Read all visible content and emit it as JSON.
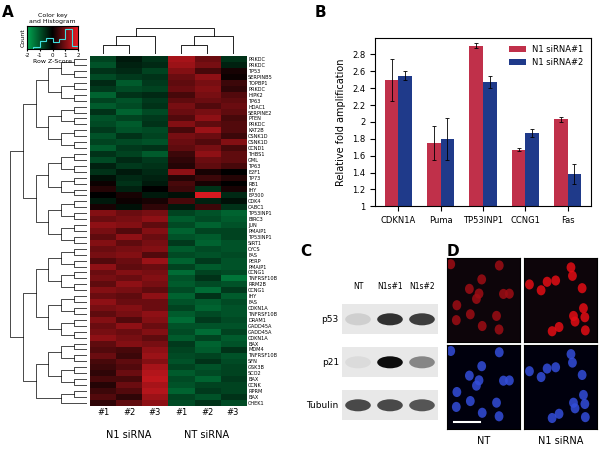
{
  "chart_data": [
    {
      "type": "heatmap",
      "panel": "A",
      "columns": [
        "#1",
        "#2",
        "#3",
        "#1",
        "#2",
        "#3"
      ],
      "groups": [
        {
          "name": "N1 siRNA",
          "columns": [
            0,
            1,
            2
          ]
        },
        {
          "name": "NT siRNA",
          "columns": [
            3,
            4,
            5
          ]
        }
      ],
      "rows": [
        "PRKDC",
        "PRKDC",
        "TP53",
        "SERPINB5",
        "TOPBP1",
        "PRKDC",
        "HIPK2",
        "TP63",
        "HDAC1",
        "SERPINE2",
        "PTEN",
        "PRKDC",
        "KAT2B",
        "CSNK1D",
        "CSNK1D",
        "CCND1",
        "THBS1",
        "GML",
        "TP63",
        "E2F1",
        "TP73",
        "RB1",
        "IHY",
        "EP300",
        "CDK4",
        "CABC1",
        "TP53INP1",
        "BIRC3",
        "JUN",
        "PMAIP1",
        "TP53INP1",
        "SIRT1",
        "CYCS",
        "FAS",
        "PERP",
        "PMAIP1",
        "CCNG1",
        "TNFRSF10B",
        "RRM2B",
        "CCNG1",
        "IHY",
        "FAS",
        "CDKN1A",
        "TNFRSF10B",
        "DRAM1",
        "GADD45A",
        "GADD45A",
        "CDKN1A",
        "BAX",
        "MDM4",
        "TNFRSF10B",
        "SFN",
        "GSK3B",
        "SCO2",
        "BAX",
        "CCNK",
        "RPRM",
        "BAX",
        "CHEK1"
      ],
      "cells": [
        [
          -0.8,
          -0.3,
          -0.6,
          1.4,
          0.9,
          -0.6
        ],
        [
          -1.0,
          -0.4,
          -0.5,
          1.3,
          1.0,
          -0.4
        ],
        [
          -0.6,
          -0.5,
          -0.8,
          1.1,
          0.6,
          0.2
        ],
        [
          -0.9,
          -0.7,
          -0.6,
          0.9,
          1.2,
          0.1
        ],
        [
          -0.5,
          -1.1,
          -0.7,
          0.8,
          1.0,
          0.5
        ],
        [
          -0.7,
          -0.9,
          -0.8,
          0.9,
          1.1,
          0.4
        ],
        [
          -1.2,
          -0.6,
          -0.5,
          0.6,
          1.0,
          0.7
        ],
        [
          -0.8,
          -1.0,
          -0.7,
          0.8,
          0.9,
          0.8
        ],
        [
          -1.1,
          -0.9,
          -0.6,
          1.0,
          0.7,
          0.9
        ],
        [
          -0.6,
          -1.2,
          -0.9,
          0.9,
          1.0,
          0.8
        ],
        [
          -1.0,
          -0.8,
          -0.7,
          0.7,
          1.2,
          0.6
        ],
        [
          -0.9,
          -1.1,
          -0.6,
          1.1,
          0.8,
          0.7
        ],
        [
          -0.7,
          -1.0,
          -0.9,
          0.6,
          1.3,
          0.7
        ],
        [
          -1.0,
          -0.6,
          -0.8,
          1.0,
          0.9,
          0.5
        ],
        [
          -0.8,
          -0.9,
          -1.0,
          0.9,
          0.7,
          1.1
        ],
        [
          -1.1,
          -0.7,
          -0.6,
          0.8,
          1.0,
          0.6
        ],
        [
          -0.6,
          -0.8,
          -1.1,
          0.5,
          1.2,
          0.8
        ],
        [
          -0.9,
          -0.5,
          -0.7,
          0.4,
          0.9,
          0.8
        ],
        [
          -0.4,
          -0.7,
          -0.6,
          0.3,
          0.8,
          0.6
        ],
        [
          -0.6,
          -0.3,
          -0.5,
          1.2,
          0.2,
          0.0
        ],
        [
          -0.2,
          -0.5,
          -0.4,
          0.3,
          0.5,
          0.3
        ],
        [
          0.1,
          -0.6,
          -0.3,
          0.6,
          0.2,
          0.0
        ],
        [
          0.3,
          -0.4,
          0.0,
          0.5,
          -0.6,
          0.2
        ],
        [
          0.0,
          0.2,
          -0.3,
          -0.2,
          1.8,
          -0.5
        ],
        [
          -0.3,
          0.1,
          0.2,
          0.6,
          -0.4,
          -0.2
        ],
        [
          0.2,
          -0.2,
          0.4,
          -0.3,
          0.5,
          -0.6
        ],
        [
          1.1,
          0.9,
          1.0,
          -0.8,
          -1.0,
          -1.2
        ],
        [
          0.9,
          1.0,
          1.2,
          -1.1,
          -0.9,
          -1.1
        ],
        [
          1.2,
          1.1,
          0.8,
          -0.9,
          -1.2,
          -1.0
        ],
        [
          1.0,
          0.7,
          1.1,
          -1.2,
          -0.8,
          -0.8
        ],
        [
          0.8,
          1.2,
          0.9,
          -1.0,
          -1.1,
          -0.8
        ],
        [
          1.1,
          0.8,
          1.0,
          -0.7,
          -1.2,
          -1.0
        ],
        [
          0.9,
          1.0,
          1.1,
          -1.1,
          -0.9,
          -1.0
        ],
        [
          1.0,
          1.1,
          0.7,
          -0.9,
          -1.0,
          -0.9
        ],
        [
          0.7,
          0.9,
          1.3,
          -1.2,
          -0.7,
          -1.0
        ],
        [
          1.2,
          0.8,
          0.9,
          -0.8,
          -1.1,
          -1.0
        ],
        [
          0.9,
          1.1,
          1.0,
          -1.3,
          -0.8,
          -0.9
        ],
        [
          1.0,
          0.9,
          1.1,
          -1.0,
          -0.6,
          -1.4
        ],
        [
          0.8,
          1.2,
          1.0,
          -1.1,
          -0.9,
          -1.0
        ],
        [
          1.1,
          1.0,
          0.8,
          -0.9,
          -1.3,
          -0.7
        ],
        [
          0.9,
          0.8,
          1.2,
          -1.2,
          -0.6,
          -1.1
        ],
        [
          1.2,
          0.9,
          0.9,
          -1.0,
          -1.1,
          -0.9
        ],
        [
          1.0,
          1.1,
          0.9,
          -0.8,
          -1.2,
          -1.0
        ],
        [
          0.8,
          1.0,
          1.2,
          -1.1,
          -0.9,
          -1.0
        ],
        [
          1.1,
          0.7,
          1.1,
          -1.3,
          -0.7,
          -0.9
        ],
        [
          0.9,
          1.2,
          0.9,
          -1.0,
          -1.0,
          -1.0
        ],
        [
          1.0,
          0.9,
          1.1,
          -0.9,
          -1.3,
          -0.8
        ],
        [
          1.2,
          1.0,
          0.8,
          -1.1,
          -0.8,
          -1.1
        ],
        [
          0.8,
          1.1,
          1.0,
          -0.7,
          -1.2,
          -1.0
        ],
        [
          0.7,
          0.6,
          1.2,
          -0.8,
          -1.1,
          -0.6
        ],
        [
          0.9,
          0.5,
          1.3,
          -0.9,
          -0.8,
          -1.0
        ],
        [
          0.6,
          0.8,
          1.1,
          -1.0,
          -0.6,
          -0.9
        ],
        [
          0.5,
          0.7,
          1.4,
          -0.8,
          -1.0,
          -0.8
        ],
        [
          0.4,
          0.9,
          1.5,
          -1.1,
          -0.9,
          -0.8
        ],
        [
          0.6,
          0.6,
          1.6,
          -0.9,
          -1.2,
          -0.7
        ],
        [
          0.3,
          0.9,
          1.4,
          -1.0,
          -0.8,
          -0.8
        ],
        [
          0.5,
          0.7,
          1.5,
          -1.2,
          -0.7,
          -0.8
        ],
        [
          0.7,
          0.4,
          1.3,
          -0.8,
          -1.0,
          -0.6
        ],
        [
          0.4,
          0.8,
          1.2,
          -0.9,
          -0.6,
          -0.9
        ]
      ],
      "color_key": {
        "title": "Color key\nand Histogram",
        "x_label": "Row Z-Score",
        "y_label": "Count",
        "xlim": [
          -2,
          2
        ],
        "xticks": [
          -2,
          -1,
          0,
          1,
          2
        ],
        "ylim": [
          0,
          130
        ],
        "tick_labels": "x",
        "bins": [
          -2,
          -1.5,
          -1,
          -0.5,
          0,
          0.5,
          1,
          1.5,
          2
        ],
        "counts": [
          2,
          10,
          45,
          60,
          40,
          55,
          110,
          20
        ]
      }
    },
    {
      "type": "bar",
      "panel": "B",
      "y_label": "Relative fold amplification",
      "categories": [
        "CDKN1A",
        "Puma",
        "TP53INP1",
        "CCNG1",
        "Fas"
      ],
      "series": [
        {
          "name": "N1 siRNA#1",
          "color": "#c0304a",
          "values": [
            2.5,
            1.75,
            2.9,
            1.67,
            2.03
          ],
          "errors": [
            0.25,
            0.2,
            0.03,
            0.02,
            0.03
          ]
        },
        {
          "name": "N1 siRNA#2",
          "color": "#1f3a8a",
          "values": [
            2.55,
            1.8,
            2.47,
            1.87,
            1.38
          ],
          "errors": [
            0.05,
            0.25,
            0.07,
            0.05,
            0.12
          ]
        }
      ],
      "ylim": [
        1,
        3
      ],
      "yticks": [
        1,
        1.2,
        1.4,
        1.6,
        1.8,
        2,
        2.2,
        2.4,
        2.6,
        2.8
      ],
      "legend": "upper right",
      "grid": false
    }
  ],
  "blot": {
    "panel": "C",
    "lanes": [
      "NT",
      "N1s#1",
      "N1s#2"
    ],
    "rows": [
      {
        "name": "p53",
        "intensity": [
          0.2,
          0.85,
          0.8
        ]
      },
      {
        "name": "p21",
        "intensity": [
          0.15,
          1.0,
          0.5
        ]
      },
      {
        "name": "Tubulin",
        "intensity": [
          0.75,
          0.75,
          0.7
        ]
      }
    ]
  },
  "microscopy": {
    "panel": "D",
    "labels": [
      "NT",
      "N1 siRNA"
    ],
    "stain_intensity": [
      0.45,
      0.9
    ]
  }
}
